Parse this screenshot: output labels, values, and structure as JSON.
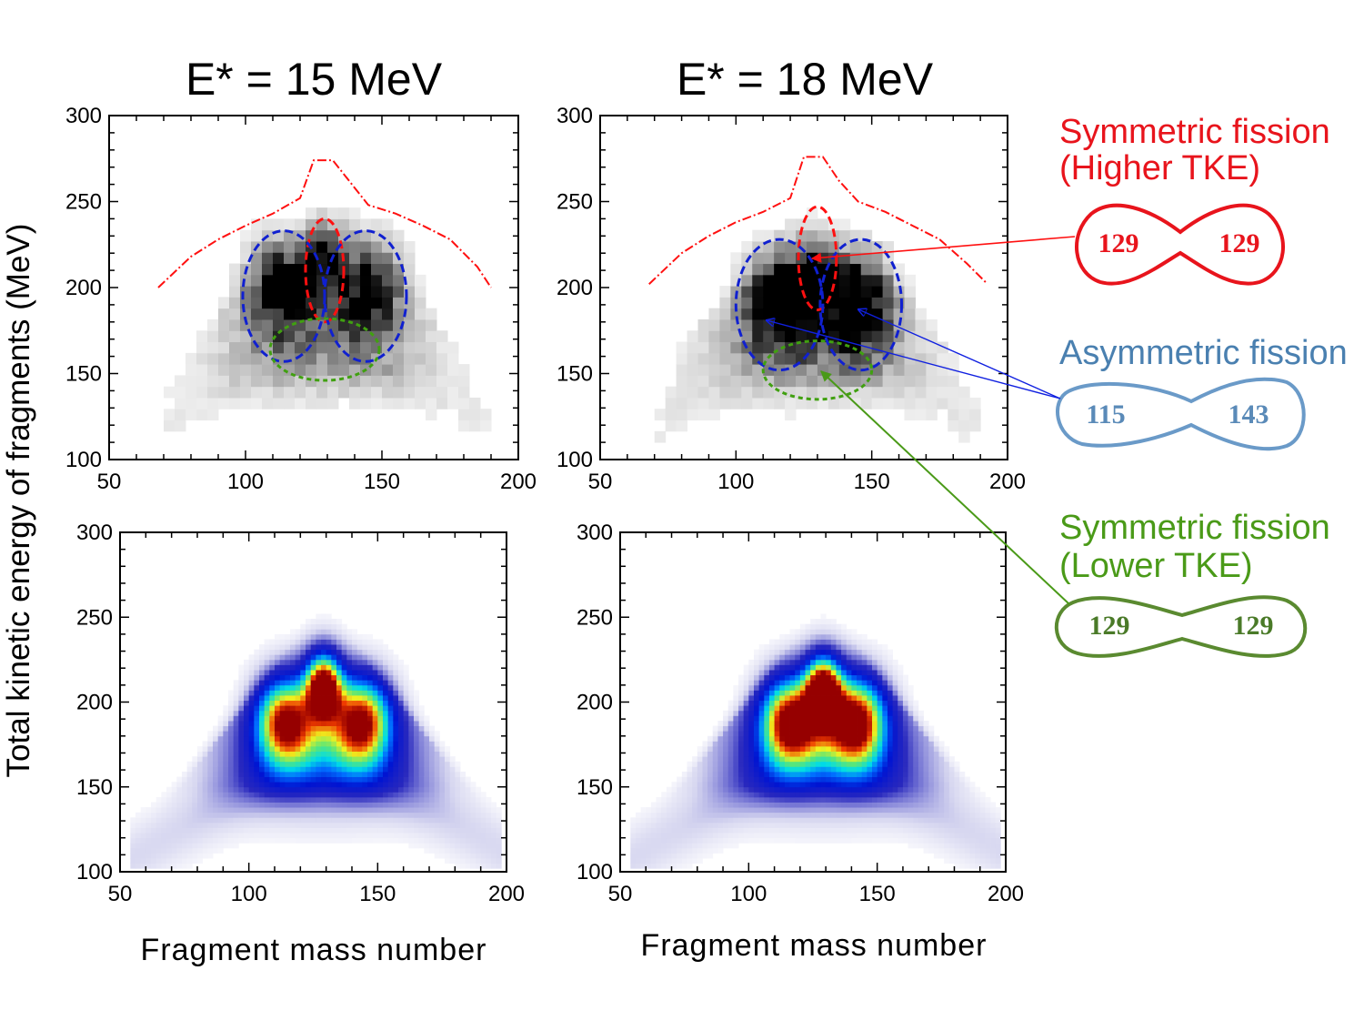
{
  "figure": {
    "ylabel": "Total kinetic energy of fragments (MeV)",
    "xlabel": "Fragment mass number"
  },
  "annotations": {
    "sym_high": {
      "title1": "Symmetric fission",
      "title2": "(Higher TKE)",
      "left": "129",
      "right": "129",
      "color": "#e8141c"
    },
    "asym": {
      "title1": "Asymmetric fission",
      "left": "115",
      "right": "143",
      "color": "#4a80b0",
      "shape_color": "#6a9ac8"
    },
    "sym_low": {
      "title1": "Symmetric fission",
      "title2": "(Lower TKE)",
      "left": "129",
      "right": "129",
      "color": "#4a9a18",
      "shape_color": "#5a8a30"
    }
  },
  "chart_data": [
    {
      "type": "heatmap",
      "panel": "experiment",
      "title": "E* = 15 MeV",
      "colormap": "grayscale",
      "xlim": [
        50,
        200
      ],
      "ylim": [
        100,
        300
      ],
      "xticks": [
        "50",
        "100",
        "150",
        "200"
      ],
      "yticks": [
        "100",
        "150",
        "200",
        "250",
        "300"
      ],
      "envelope": {
        "style": "red dash-dot",
        "x": [
          68,
          80,
          90,
          100,
          110,
          120,
          125,
          132,
          138,
          145,
          155,
          165,
          175,
          185,
          190
        ],
        "y": [
          200,
          218,
          228,
          236,
          243,
          252,
          274,
          274,
          262,
          248,
          243,
          236,
          228,
          212,
          200
        ]
      },
      "regions": [
        {
          "label": "sym_high",
          "color": "#ff1010",
          "mass": 129,
          "tke": 210,
          "dmass": 7,
          "dtke": 30
        },
        {
          "label": "asym",
          "color": "#1020d0",
          "mass": 114,
          "tke": 195,
          "dmass": 15,
          "dtke": 38
        },
        {
          "label": "asym",
          "color": "#1020d0",
          "mass": 144,
          "tke": 195,
          "dmass": 15,
          "dtke": 38
        },
        {
          "label": "sym_low",
          "color": "#40a010",
          "mass": 129,
          "tke": 164,
          "dmass": 20,
          "dtke": 18
        }
      ],
      "peaks": [
        {
          "mass": 113,
          "tke": 200
        },
        {
          "mass": 145,
          "tke": 200
        },
        {
          "mass": 129,
          "tke": 215
        }
      ]
    },
    {
      "type": "heatmap",
      "panel": "experiment",
      "title": "E* = 18 MeV",
      "colormap": "grayscale",
      "xlim": [
        50,
        200
      ],
      "ylim": [
        100,
        300
      ],
      "xticks": [
        "50",
        "100",
        "150",
        "200"
      ],
      "yticks": [
        "100",
        "150",
        "200",
        "250",
        "300"
      ],
      "envelope": {
        "style": "red dash-dot",
        "x": [
          68,
          80,
          90,
          100,
          110,
          120,
          125,
          132,
          138,
          145,
          155,
          165,
          175,
          185,
          192
        ],
        "y": [
          202,
          220,
          230,
          238,
          244,
          252,
          276,
          276,
          262,
          250,
          244,
          236,
          228,
          214,
          203
        ]
      },
      "regions": [
        {
          "label": "sym_high",
          "color": "#ff1010",
          "mass": 130,
          "tke": 217,
          "dmass": 7,
          "dtke": 30
        },
        {
          "label": "asym",
          "color": "#1020d0",
          "mass": 116,
          "tke": 190,
          "dmass": 16,
          "dtke": 38
        },
        {
          "label": "asym",
          "color": "#1020d0",
          "mass": 146,
          "tke": 190,
          "dmass": 15,
          "dtke": 38
        },
        {
          "label": "sym_low",
          "color": "#40a010",
          "mass": 130,
          "tke": 152,
          "dmass": 20,
          "dtke": 17
        }
      ],
      "peaks": [
        {
          "mass": 116,
          "tke": 192
        },
        {
          "mass": 145,
          "tke": 192
        },
        {
          "mass": 129,
          "tke": 205
        }
      ]
    },
    {
      "type": "heatmap",
      "panel": "calculation",
      "title": "",
      "colormap": "white-blue-cyan-green-yellow-red",
      "xlim": [
        50,
        200
      ],
      "ylim": [
        100,
        300
      ],
      "xticks": [
        "50",
        "100",
        "150",
        "200"
      ],
      "yticks": [
        "100",
        "150",
        "200",
        "250",
        "300"
      ],
      "peaks": [
        {
          "mass": 129,
          "tke": 210,
          "level": 1.0
        },
        {
          "mass": 114,
          "tke": 190,
          "level": 0.8
        },
        {
          "mass": 144,
          "tke": 190,
          "level": 0.8
        }
      ]
    },
    {
      "type": "heatmap",
      "panel": "calculation",
      "title": "",
      "colormap": "white-blue-cyan-green-yellow-red",
      "xlim": [
        50,
        200
      ],
      "ylim": [
        100,
        300
      ],
      "xticks": [
        "50",
        "100",
        "150",
        "200"
      ],
      "yticks": [
        "100",
        "150",
        "200",
        "250",
        "300"
      ],
      "peaks": [
        {
          "mass": 129,
          "tke": 208,
          "level": 1.0
        },
        {
          "mass": 116,
          "tke": 190,
          "level": 0.85
        },
        {
          "mass": 142,
          "tke": 190,
          "level": 0.85
        }
      ]
    }
  ]
}
